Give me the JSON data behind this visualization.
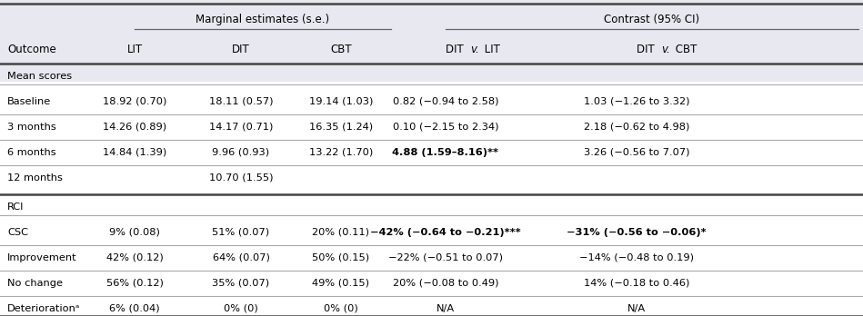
{
  "header_group1": "Marginal estimates (s.e.)",
  "header_group2": "Contrast (95% CI)",
  "col_headers": [
    "Outcome",
    "LIT",
    "DIT",
    "CBT",
    "DIT v. LIT",
    "DIT v. CBT"
  ],
  "section1": "Mean scores",
  "section2": "RCI",
  "rows": [
    {
      "label": "Baseline",
      "lit": "18.92 (0.70)",
      "dit": "18.11 (0.57)",
      "cbt": "19.14 (1.03)",
      "dit_v_lit": "0.82 (−0.94 to 2.58)",
      "dit_v_cbt": "1.03 (−1.26 to 3.32)",
      "bold_dvl": false,
      "bold_dvc": false
    },
    {
      "label": "3 months",
      "lit": "14.26 (0.89)",
      "dit": "14.17 (0.71)",
      "cbt": "16.35 (1.24)",
      "dit_v_lit": "0.10 (−2.15 to 2.34)",
      "dit_v_cbt": "2.18 (−0.62 to 4.98)",
      "bold_dvl": false,
      "bold_dvc": false
    },
    {
      "label": "6 months",
      "lit": "14.84 (1.39)",
      "dit": "9.96 (0.93)",
      "cbt": "13.22 (1.70)",
      "dit_v_lit": "4.88 (1.59–8.16)**",
      "dit_v_cbt": "3.26 (−0.56 to 7.07)",
      "bold_dvl": true,
      "bold_dvc": false
    },
    {
      "label": "12 months",
      "lit": "",
      "dit": "10.70 (1.55)",
      "cbt": "",
      "dit_v_lit": "",
      "dit_v_cbt": "",
      "bold_dvl": false,
      "bold_dvc": false
    },
    {
      "label": "CSC",
      "lit": "9% (0.08)",
      "dit": "51% (0.07)",
      "cbt": "20% (0.11)",
      "dit_v_lit": "−42% (−0.64 to −0.21)***",
      "dit_v_cbt": "−31% (−0.56 to −0.06)*",
      "bold_dvl": true,
      "bold_dvc": true
    },
    {
      "label": "Improvement",
      "lit": "42% (0.12)",
      "dit": "64% (0.07)",
      "cbt": "50% (0.15)",
      "dit_v_lit": "−22% (−0.51 to 0.07)",
      "dit_v_cbt": "−14% (−0.48 to 0.19)",
      "bold_dvl": false,
      "bold_dvc": false
    },
    {
      "label": "No change",
      "lit": "56% (0.12)",
      "dit": "35% (0.07)",
      "cbt": "49% (0.15)",
      "dit_v_lit": "20% (−0.08 to 0.49)",
      "dit_v_cbt": "14% (−0.18 to 0.46)",
      "bold_dvl": false,
      "bold_dvc": false
    },
    {
      "label": "Deteriorationᵃ",
      "lit": "6% (0.04)",
      "dit": "0% (0)",
      "cbt": "0% (0)",
      "dit_v_lit": "N/A",
      "dit_v_cbt": "N/A",
      "bold_dvl": false,
      "bold_dvc": false
    }
  ],
  "header_bg": "#e8e8f0",
  "white_bg": "#ffffff",
  "thick_line_color": "#444444",
  "thin_line_color": "#aaaaaa",
  "span_line_color": "#666666",
  "fs_grp": 8.5,
  "fs_col": 8.5,
  "fs_section": 8.2,
  "fs_data": 8.2
}
